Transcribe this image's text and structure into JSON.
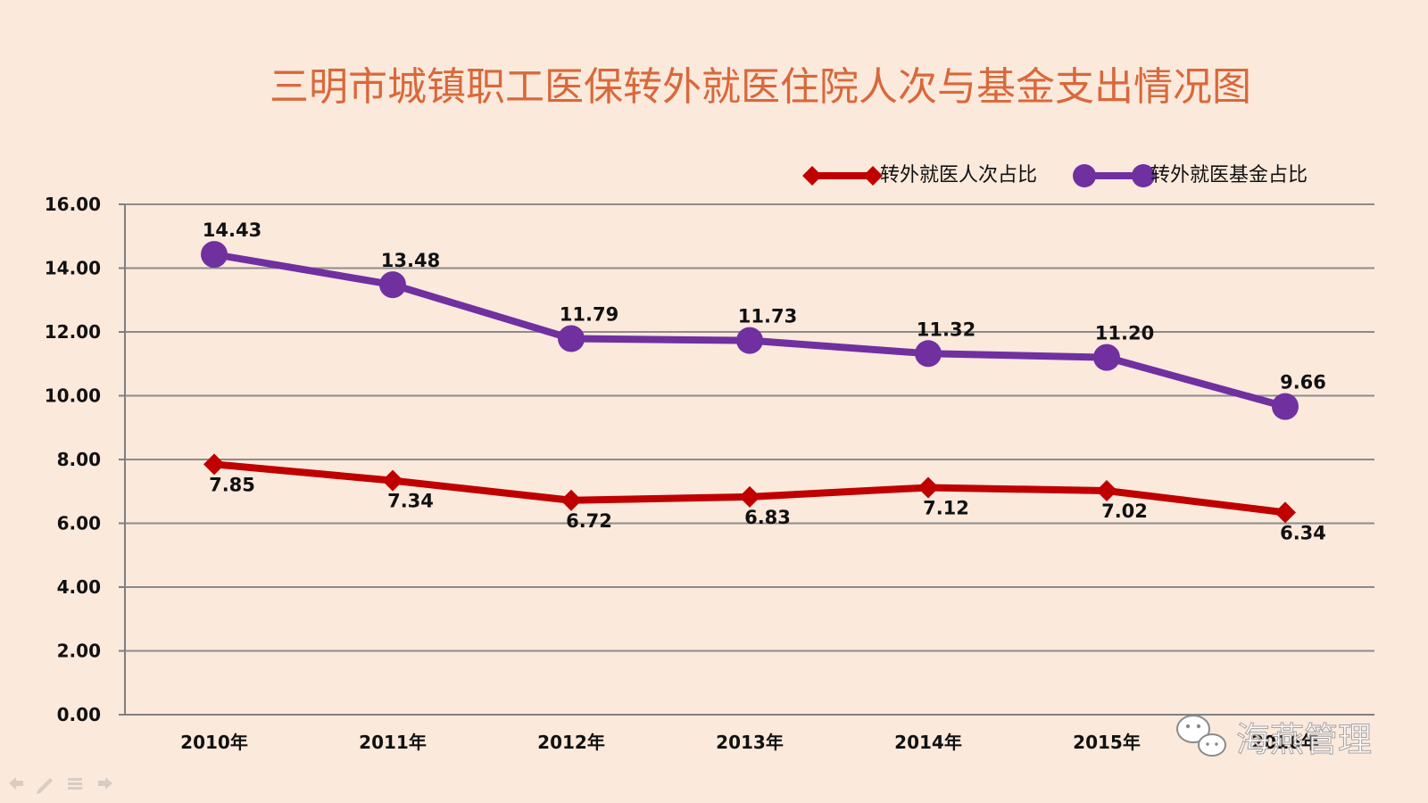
{
  "chart_data": {
    "type": "line",
    "title": "三明市城镇职工医保转外就医住院人次与基金支出情况图",
    "categories": [
      "2010年",
      "2011年",
      "2012年",
      "2013年",
      "2014年",
      "2015年",
      "2016年"
    ],
    "y_ticks": [
      "0.00",
      "2.00",
      "4.00",
      "6.00",
      "8.00",
      "10.00",
      "12.00",
      "14.00",
      "16.00"
    ],
    "ylim": [
      0,
      16
    ],
    "grid": true,
    "legend_position": "top-right",
    "series": [
      {
        "name": "转外就医人次占比",
        "color": "#c00000",
        "marker": "diamond",
        "values": [
          7.85,
          7.34,
          6.72,
          6.83,
          7.12,
          7.02,
          6.34
        ],
        "labels": [
          "7.85",
          "7.34",
          "6.72",
          "6.83",
          "7.12",
          "7.02",
          "6.34"
        ]
      },
      {
        "name": "转外就医基金占比",
        "color": "#7030a0",
        "marker": "circle",
        "values": [
          14.43,
          13.48,
          11.79,
          11.73,
          11.32,
          11.2,
          9.66
        ],
        "labels": [
          "14.43",
          "13.48",
          "11.79",
          "11.73",
          "11.32",
          "11.20",
          "9.66"
        ]
      }
    ]
  },
  "watermark": {
    "text": "海燕管理",
    "icon": "wechat-icon"
  },
  "nav_icons": [
    "prev-arrow-icon",
    "pen-icon",
    "menu-icon",
    "next-arrow-icon"
  ]
}
